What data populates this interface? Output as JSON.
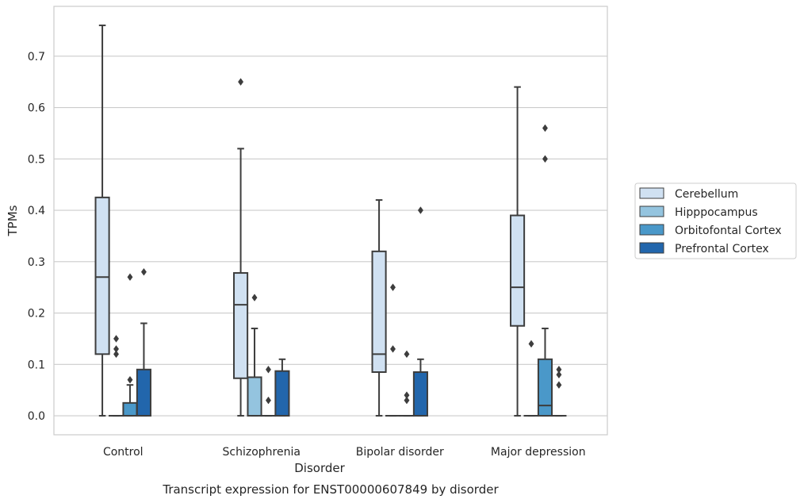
{
  "chart_data": {
    "type": "box",
    "title": "",
    "caption": "Transcript expression for ENST00000607849 by disorder",
    "xlabel": "Disorder",
    "ylabel": "TPMs",
    "ylim": [
      -0.037,
      0.797
    ],
    "yticks": [
      0.0,
      0.1,
      0.2,
      0.3,
      0.4,
      0.5,
      0.6,
      0.7
    ],
    "ytick_labels": [
      "0.0",
      "0.1",
      "0.2",
      "0.3",
      "0.4",
      "0.5",
      "0.6",
      "0.7"
    ],
    "categories": [
      "Control",
      "Schizophrenia",
      "Bipolar disorder",
      "Major depression"
    ],
    "grid": "horizontal",
    "legend_position": "right",
    "series": [
      {
        "name": "Cerebellum",
        "color": "#d0e1f2",
        "boxes": [
          {
            "whislo": 0.0,
            "q1": 0.12,
            "med": 0.27,
            "q3": 0.425,
            "whishi": 0.76,
            "fliers": []
          },
          {
            "whislo": 0.0,
            "q1": 0.073,
            "med": 0.216,
            "q3": 0.278,
            "whishi": 0.52,
            "fliers": [
              0.65
            ]
          },
          {
            "whislo": 0.0,
            "q1": 0.085,
            "med": 0.12,
            "q3": 0.32,
            "whishi": 0.42,
            "fliers": []
          },
          {
            "whislo": 0.0,
            "q1": 0.175,
            "med": 0.25,
            "q3": 0.39,
            "whishi": 0.64,
            "fliers": []
          }
        ]
      },
      {
        "name": "Hipppocampus",
        "color": "#94c4df",
        "boxes": [
          {
            "whislo": 0.0,
            "q1": 0.0,
            "med": 0.0,
            "q3": 0.0,
            "whishi": 0.0,
            "fliers": [
              0.12,
              0.13,
              0.15
            ]
          },
          {
            "whislo": 0.0,
            "q1": 0.0,
            "med": 0.0,
            "q3": 0.075,
            "whishi": 0.17,
            "fliers": [
              0.23
            ]
          },
          {
            "whislo": 0.0,
            "q1": 0.0,
            "med": 0.0,
            "q3": 0.0,
            "whishi": 0.0,
            "fliers": [
              0.13,
              0.25
            ]
          },
          {
            "whislo": 0.0,
            "q1": 0.0,
            "med": 0.0,
            "q3": 0.0,
            "whishi": 0.0,
            "fliers": [
              0.14
            ]
          }
        ]
      },
      {
        "name": "Orbitofontal Cortex",
        "color": "#4a98c9",
        "boxes": [
          {
            "whislo": 0.0,
            "q1": 0.0,
            "med": 0.0,
            "q3": 0.025,
            "whishi": 0.06,
            "fliers": [
              0.07,
              0.27
            ]
          },
          {
            "whislo": 0.0,
            "q1": 0.0,
            "med": 0.0,
            "q3": 0.0,
            "whishi": 0.0,
            "fliers": [
              0.03,
              0.09
            ]
          },
          {
            "whislo": 0.0,
            "q1": 0.0,
            "med": 0.0,
            "q3": 0.0,
            "whishi": 0.0,
            "fliers": [
              0.03,
              0.04,
              0.12
            ]
          },
          {
            "whislo": 0.0,
            "q1": 0.0,
            "med": 0.02,
            "q3": 0.11,
            "whishi": 0.17,
            "fliers": [
              0.5,
              0.56
            ]
          }
        ]
      },
      {
        "name": "Prefrontal Cortex",
        "color": "#2266ac",
        "boxes": [
          {
            "whislo": 0.0,
            "q1": 0.0,
            "med": 0.0,
            "q3": 0.09,
            "whishi": 0.18,
            "fliers": [
              0.28
            ]
          },
          {
            "whislo": 0.0,
            "q1": 0.0,
            "med": 0.0,
            "q3": 0.087,
            "whishi": 0.11,
            "fliers": []
          },
          {
            "whislo": 0.0,
            "q1": 0.0,
            "med": 0.0,
            "q3": 0.085,
            "whishi": 0.11,
            "fliers": [
              0.4
            ]
          },
          {
            "whislo": 0.0,
            "q1": 0.0,
            "med": 0.0,
            "q3": 0.0,
            "whishi": 0.0,
            "fliers": [
              0.06,
              0.08,
              0.09
            ]
          }
        ]
      }
    ]
  }
}
